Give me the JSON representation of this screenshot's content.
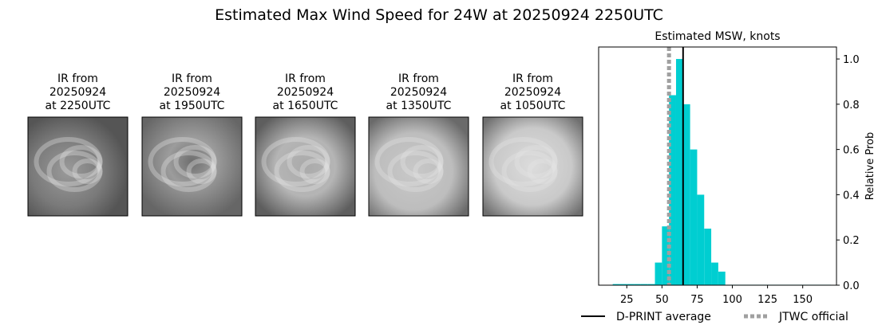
{
  "title": "Estimated Max Wind Speed for 24W at 20250924 2250UTC",
  "panels": [
    {
      "lines": [
        "IR from",
        "20250924",
        "at 2250UTC"
      ]
    },
    {
      "lines": [
        "IR from",
        "20250924",
        "at 1950UTC"
      ]
    },
    {
      "lines": [
        "IR from",
        "20250924",
        "at 1650UTC"
      ]
    },
    {
      "lines": [
        "IR from",
        "20250924",
        "at 1350UTC"
      ]
    },
    {
      "lines": [
        "IR from",
        "20250924",
        "at 1050UTC"
      ]
    }
  ],
  "chart_data": {
    "type": "histogram",
    "title": "Estimated MSW, knots",
    "y_label": "Relative Prob",
    "color": "#00ced1",
    "bins": [
      15,
      20,
      25,
      30,
      35,
      40,
      45,
      50,
      55,
      60,
      65,
      70,
      75,
      80,
      85,
      90,
      95,
      100,
      105,
      110,
      115,
      120,
      125,
      130,
      135,
      140,
      145,
      150,
      155,
      160,
      165,
      170
    ],
    "counts": [
      0.005,
      0.005,
      0.005,
      0.005,
      0.005,
      0.005,
      0.1,
      0.26,
      0.84,
      1.0,
      0.8,
      0.6,
      0.4,
      0.25,
      0.1,
      0.06,
      0.002,
      0.002,
      0.002,
      0.002,
      0.002,
      0.002,
      0.002,
      0.002,
      0.002,
      0.002,
      0.002,
      0.002,
      0.002,
      0.002,
      0.002
    ],
    "xlim": [
      5,
      174
    ],
    "ylim": [
      0,
      1.053
    ],
    "xticks": [
      25,
      50,
      75,
      100,
      125,
      150
    ],
    "yticks": [
      {
        "value": 0,
        "label": "0.0"
      },
      0.2,
      0.4,
      0.6,
      0.8,
      {
        "value": 1,
        "label": "1.0"
      }
    ],
    "vlines": [
      {
        "name": "D-PRINT average",
        "value": 65,
        "color": "#000000",
        "style": "solid"
      },
      {
        "name": "JTWC official",
        "value": 55,
        "color": "#a0a0a0",
        "style": "dotted"
      }
    ]
  }
}
